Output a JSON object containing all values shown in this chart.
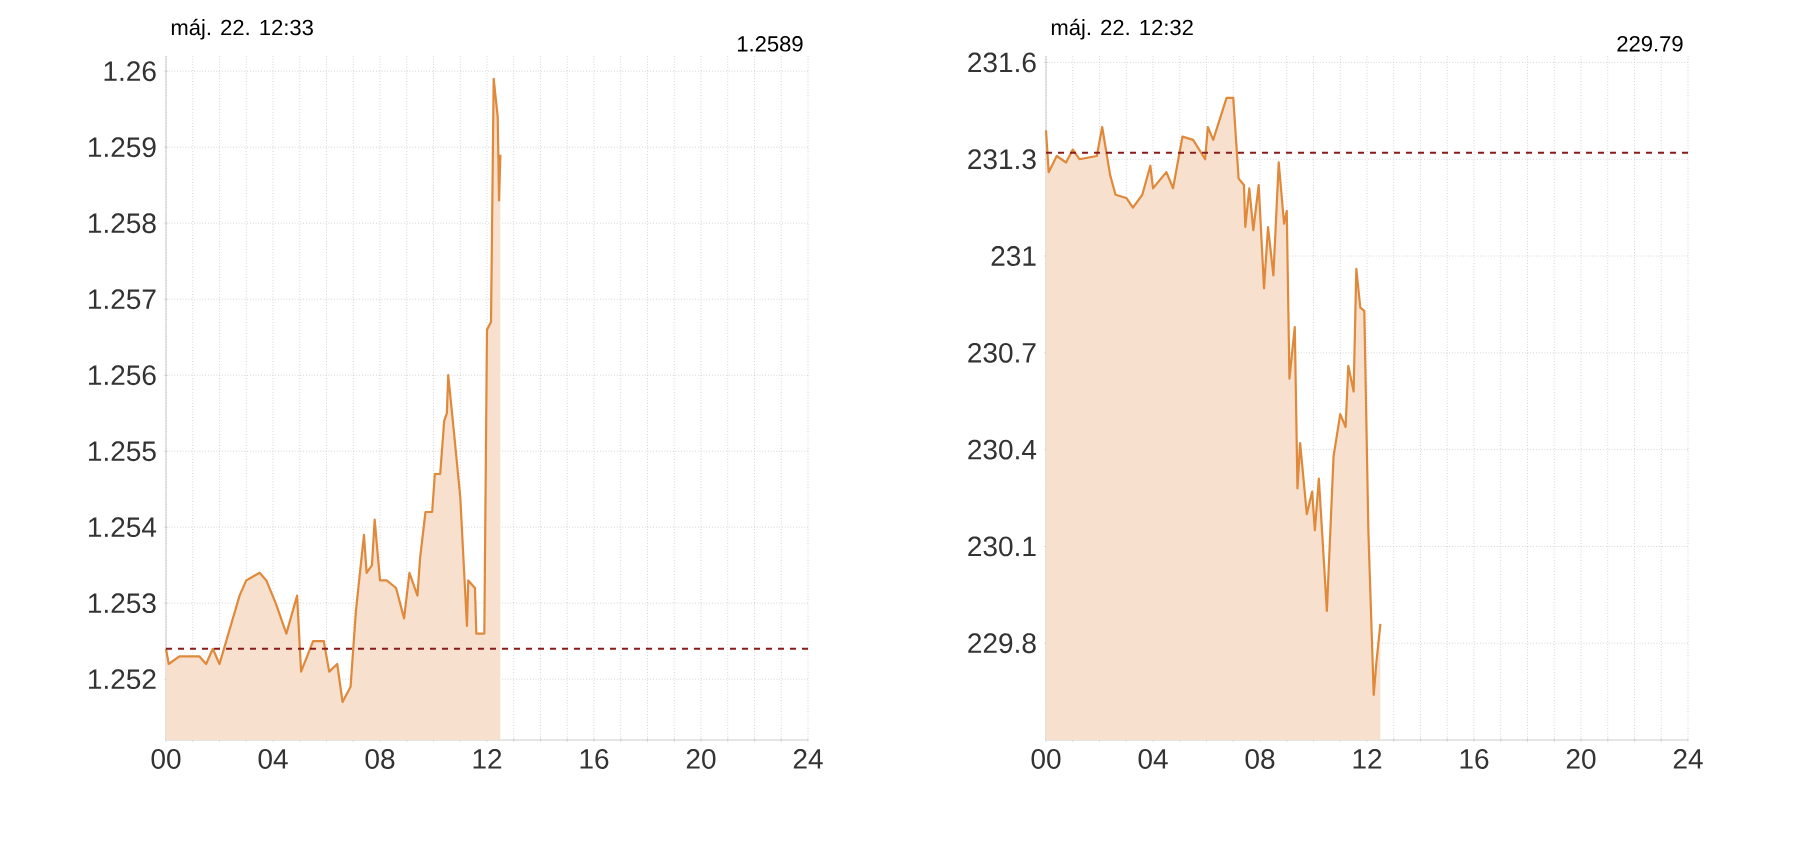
{
  "chart_data": [
    {
      "type": "area",
      "title": "máj. 22. 12:33",
      "subtitle": "1.2589",
      "color": "#e0893a",
      "grid": true,
      "xlim": [
        0,
        24
      ],
      "ylim": [
        1.2512,
        1.2602
      ],
      "xticks": [
        {
          "value": 0,
          "label": "00"
        },
        {
          "value": 1,
          "label": null
        },
        {
          "value": 2,
          "label": null
        },
        {
          "value": 3,
          "label": null
        },
        {
          "value": 4,
          "label": "04"
        },
        {
          "value": 5,
          "label": null
        },
        {
          "value": 6,
          "label": null
        },
        {
          "value": 7,
          "label": null
        },
        {
          "value": 8,
          "label": "08"
        },
        {
          "value": 9,
          "label": null
        },
        {
          "value": 10,
          "label": null
        },
        {
          "value": 11,
          "label": null
        },
        {
          "value": 12,
          "label": "12"
        },
        {
          "value": 13,
          "label": null
        },
        {
          "value": 14,
          "label": null
        },
        {
          "value": 15,
          "label": null
        },
        {
          "value": 16,
          "label": "16"
        },
        {
          "value": 17,
          "label": null
        },
        {
          "value": 18,
          "label": null
        },
        {
          "value": 19,
          "label": null
        },
        {
          "value": 20,
          "label": "20"
        },
        {
          "value": 21,
          "label": null
        },
        {
          "value": 22,
          "label": null
        },
        {
          "value": 23,
          "label": null
        },
        {
          "value": 24,
          "label": "24"
        }
      ],
      "yticks": [
        1.252,
        1.253,
        1.254,
        1.255,
        1.256,
        1.257,
        1.258,
        1.259,
        1.26
      ],
      "ref_lines": [
        {
          "axis": "y",
          "value": 1.2524,
          "color": "#8b1a1a",
          "line_style": "dashed"
        }
      ],
      "x": [
        0,
        0.1,
        0.5,
        1.25,
        1.5,
        1.75,
        2,
        2.75,
        3,
        3.5,
        3.75,
        4.1,
        4.5,
        4.9,
        5.05,
        5.5,
        5.9,
        6.1,
        6.4,
        6.6,
        6.9,
        7.1,
        7.4,
        7.5,
        7.7,
        7.8,
        8,
        8.25,
        8.6,
        8.9,
        9.1,
        9.4,
        9.5,
        9.7,
        9.95,
        10.05,
        10.25,
        10.4,
        10.5,
        10.55,
        10.75,
        11,
        11.25,
        11.3,
        11.55,
        11.6,
        11.9,
        12,
        12.15,
        12.25,
        12.4,
        12.45,
        12.5
      ],
      "values": [
        1.2524,
        1.2522,
        1.2523,
        1.2523,
        1.2522,
        1.2524,
        1.2522,
        1.2531,
        1.2533,
        1.2534,
        1.2533,
        1.253,
        1.2526,
        1.2531,
        1.2521,
        1.2525,
        1.2525,
        1.2521,
        1.2522,
        1.2517,
        1.2519,
        1.2529,
        1.2539,
        1.2534,
        1.2535,
        1.2541,
        1.2533,
        1.2533,
        1.2532,
        1.2528,
        1.2534,
        1.2531,
        1.2536,
        1.2542,
        1.2542,
        1.2547,
        1.2547,
        1.2554,
        1.2555,
        1.256,
        1.2553,
        1.2544,
        1.2527,
        1.2533,
        1.2532,
        1.2526,
        1.2526,
        1.2566,
        1.2567,
        1.2599,
        1.2594,
        1.2583,
        1.2589
      ]
    },
    {
      "type": "area",
      "title": "máj. 22. 12:32",
      "subtitle": "229.79",
      "color": "#e0893a",
      "grid": true,
      "xlim": [
        0,
        24
      ],
      "ylim": [
        229.5,
        231.62
      ],
      "xticks": [
        {
          "value": 0,
          "label": "00"
        },
        {
          "value": 1,
          "label": null
        },
        {
          "value": 2,
          "label": null
        },
        {
          "value": 3,
          "label": null
        },
        {
          "value": 4,
          "label": "04"
        },
        {
          "value": 5,
          "label": null
        },
        {
          "value": 6,
          "label": null
        },
        {
          "value": 7,
          "label": null
        },
        {
          "value": 8,
          "label": "08"
        },
        {
          "value": 9,
          "label": null
        },
        {
          "value": 10,
          "label": null
        },
        {
          "value": 11,
          "label": null
        },
        {
          "value": 12,
          "label": "12"
        },
        {
          "value": 13,
          "label": null
        },
        {
          "value": 14,
          "label": null
        },
        {
          "value": 15,
          "label": null
        },
        {
          "value": 16,
          "label": "16"
        },
        {
          "value": 17,
          "label": null
        },
        {
          "value": 18,
          "label": null
        },
        {
          "value": 19,
          "label": null
        },
        {
          "value": 20,
          "label": "20"
        },
        {
          "value": 21,
          "label": null
        },
        {
          "value": 22,
          "label": null
        },
        {
          "value": 23,
          "label": null
        },
        {
          "value": 24,
          "label": "24"
        }
      ],
      "yticks": [
        229.8,
        230.1,
        230.4,
        230.7,
        231,
        231.3,
        231.6
      ],
      "ref_lines": [
        {
          "axis": "y",
          "value": 231.32,
          "color": "#8b1a1a",
          "line_style": "dashed"
        }
      ],
      "x": [
        0,
        0.1,
        0.4,
        0.75,
        1,
        1.25,
        1.9,
        2.1,
        2.4,
        2.6,
        3,
        3.25,
        3.6,
        3.9,
        4,
        4.5,
        4.75,
        5.1,
        5.5,
        5.95,
        6.05,
        6.25,
        6.75,
        7,
        7.2,
        7.4,
        7.45,
        7.6,
        7.75,
        7.95,
        8.15,
        8.3,
        8.5,
        8.7,
        8.9,
        9,
        9.1,
        9.3,
        9.4,
        9.5,
        9.75,
        9.95,
        10.05,
        10.2,
        10.5,
        10.75,
        11,
        11.2,
        11.3,
        11.5,
        11.6,
        11.75,
        11.9,
        12.05,
        12.25,
        12.35,
        12.5
      ],
      "values": [
        231.39,
        231.26,
        231.31,
        231.29,
        231.33,
        231.3,
        231.31,
        231.4,
        231.25,
        231.19,
        231.18,
        231.15,
        231.19,
        231.28,
        231.21,
        231.26,
        231.21,
        231.37,
        231.36,
        231.3,
        231.4,
        231.36,
        231.49,
        231.49,
        231.24,
        231.22,
        231.09,
        231.21,
        231.08,
        231.22,
        230.9,
        231.09,
        230.94,
        231.29,
        231.1,
        231.14,
        230.62,
        230.78,
        230.28,
        230.42,
        230.2,
        230.27,
        230.15,
        230.31,
        229.9,
        230.38,
        230.51,
        230.47,
        230.66,
        230.58,
        230.96,
        230.84,
        230.83,
        230.15,
        229.64,
        229.74,
        229.86
      ]
    }
  ]
}
